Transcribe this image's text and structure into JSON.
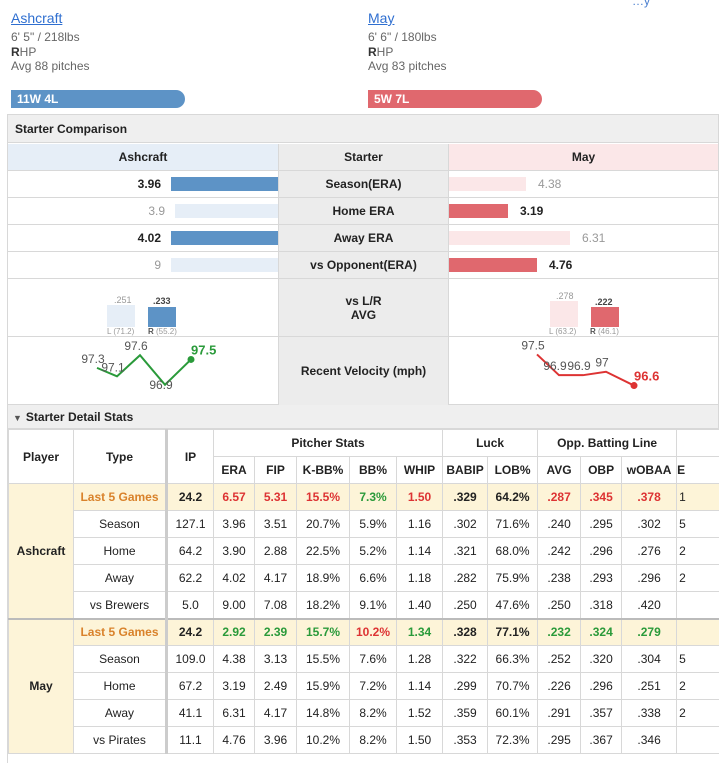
{
  "header": {
    "top_link": "…y",
    "left": {
      "name": "Ashcraft",
      "size": "6' 5\" / 218lbs",
      "hand_letter": "R",
      "hand_rest": "HP",
      "avg_pitches": "Avg 88 pitches",
      "record": "11W 4L"
    },
    "right": {
      "name": "May",
      "size": "6' 6\" / 180lbs",
      "hand_letter": "R",
      "hand_rest": "HP",
      "avg_pitches": "Avg 83 pitches",
      "record": "5W 7L"
    }
  },
  "comparison": {
    "title": "Starter Comparison",
    "col_left": "Ashcraft",
    "col_mid": "Starter",
    "col_right": "May",
    "rows": [
      {
        "label": "Season(ERA)",
        "left": "3.96",
        "right": "4.38",
        "left_frac": 1.0,
        "right_frac": 0.45,
        "winner": "left"
      },
      {
        "label": "Home ERA",
        "left": "3.9",
        "right": "3.19",
        "left_frac": 0.96,
        "right_frac": 0.35,
        "winner": "right"
      },
      {
        "label": "Away ERA",
        "left": "4.02",
        "right": "6.31",
        "left_frac": 1.0,
        "right_frac": 0.71,
        "winner": "left"
      },
      {
        "label": "vs Opponent(ERA)",
        "left": "9",
        "right": "4.76",
        "left_frac": 1.0,
        "right_frac": 0.52,
        "winner": "right"
      }
    ],
    "lr": {
      "label_line1": "vs L/R",
      "label_line2": "AVG",
      "left": {
        "vl": ".251",
        "vr": ".233",
        "l_cap": "L",
        "l_ip": "(71.2)",
        "r_cap": "R",
        "r_ip": "(55.2)"
      },
      "right": {
        "vl": ".278",
        "vr": ".222",
        "l_cap": "L",
        "l_ip": "(63.2)",
        "r_cap": "R",
        "r_ip": "(46.1)"
      }
    },
    "velocity": {
      "label": "Recent Velocity (mph)",
      "left": [
        "97.3",
        "97.1",
        "97.6",
        "96.9",
        "97.5"
      ],
      "right": [
        "97.5",
        "96.9",
        "96.9",
        "97",
        "96.6"
      ]
    }
  },
  "detail": {
    "title": "Starter Detail Stats",
    "headers": {
      "player": "Player",
      "type": "Type",
      "ip": "IP",
      "group_pitcher": "Pitcher Stats",
      "group_luck": "Luck",
      "group_opp": "Opp. Batting Line",
      "cols": [
        "ERA",
        "FIP",
        "K-BB%",
        "BB%",
        "WHIP",
        "BABIP",
        "LOB%",
        "AVG",
        "OBP",
        "wOBAA",
        "E"
      ]
    },
    "players": [
      {
        "name": "Ashcraft",
        "rows": [
          {
            "type": "Last 5 Games",
            "vals": [
              "24.2",
              "6.57",
              "5.31",
              "15.5%",
              "7.3%",
              "1.50",
              ".329",
              "64.2%",
              ".287",
              ".345",
              ".378",
              "1"
            ]
          },
          {
            "type": "Season",
            "vals": [
              "127.1",
              "3.96",
              "3.51",
              "20.7%",
              "5.9%",
              "1.16",
              ".302",
              "71.6%",
              ".240",
              ".295",
              ".302",
              "5"
            ]
          },
          {
            "type": "Home",
            "vals": [
              "64.2",
              "3.90",
              "2.88",
              "22.5%",
              "5.2%",
              "1.14",
              ".321",
              "68.0%",
              ".242",
              ".296",
              ".276",
              "2"
            ]
          },
          {
            "type": "Away",
            "vals": [
              "62.2",
              "4.02",
              "4.17",
              "18.9%",
              "6.6%",
              "1.18",
              ".282",
              "75.9%",
              ".238",
              ".293",
              ".296",
              "2"
            ]
          },
          {
            "type": "vs Brewers",
            "vals": [
              "5.0",
              "9.00",
              "7.08",
              "18.2%",
              "9.1%",
              "1.40",
              ".250",
              "47.6%",
              ".250",
              ".318",
              ".420",
              ""
            ]
          }
        ]
      },
      {
        "name": "May",
        "rows": [
          {
            "type": "Last 5 Games",
            "vals": [
              "24.2",
              "2.92",
              "2.39",
              "15.7%",
              "10.2%",
              "1.34",
              ".328",
              "77.1%",
              ".232",
              ".324",
              ".279",
              ""
            ]
          },
          {
            "type": "Season",
            "vals": [
              "109.0",
              "4.38",
              "3.13",
              "15.5%",
              "7.6%",
              "1.28",
              ".322",
              "66.3%",
              ".252",
              ".320",
              ".304",
              "5"
            ]
          },
          {
            "type": "Home",
            "vals": [
              "67.2",
              "3.19",
              "2.49",
              "15.9%",
              "7.2%",
              "1.14",
              ".299",
              "70.7%",
              ".226",
              ".296",
              ".251",
              "2"
            ]
          },
          {
            "type": "Away",
            "vals": [
              "41.1",
              "6.31",
              "4.17",
              "14.8%",
              "8.2%",
              "1.52",
              ".359",
              "60.1%",
              ".291",
              ".357",
              ".338",
              "2"
            ]
          },
          {
            "type": "vs Pirates",
            "vals": [
              "11.1",
              "4.76",
              "3.96",
              "10.2%",
              "8.2%",
              "1.50",
              ".353",
              "72.3%",
              ".295",
              ".367",
              ".346",
              ""
            ]
          }
        ]
      }
    ],
    "highlight": {
      "Ashcraft": [
        "",
        "red",
        "red",
        "red",
        "green",
        "red",
        "",
        "",
        "red",
        "red",
        "red",
        ""
      ],
      "May": [
        "",
        "green",
        "green",
        "green",
        "red",
        "green",
        "",
        "",
        "green",
        "green",
        "green",
        ""
      ]
    }
  },
  "colors": {
    "ashcraft": "#5d93c6",
    "ashcraft_light": "#e6eef7",
    "may": "#e0686e",
    "may_light": "#fbe7e8",
    "win_green": "#2a9a3a",
    "lose_red": "#d33"
  }
}
